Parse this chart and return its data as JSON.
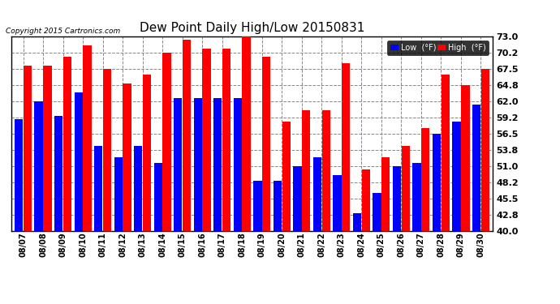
{
  "title": "Dew Point Daily High/Low 20150831",
  "copyright": "Copyright 2015 Cartronics.com",
  "dates": [
    "08/07",
    "08/08",
    "08/09",
    "08/10",
    "08/11",
    "08/12",
    "08/13",
    "08/14",
    "08/15",
    "08/16",
    "08/17",
    "08/18",
    "08/19",
    "08/20",
    "08/21",
    "08/22",
    "08/23",
    "08/24",
    "08/25",
    "08/26",
    "08/27",
    "08/28",
    "08/29",
    "08/30"
  ],
  "high": [
    68.0,
    68.0,
    69.5,
    71.5,
    67.5,
    65.0,
    66.5,
    70.2,
    72.5,
    71.0,
    71.0,
    73.0,
    69.5,
    58.5,
    60.5,
    60.5,
    68.5,
    50.5,
    52.5,
    54.5,
    57.5,
    66.5,
    64.8,
    67.5
  ],
  "low": [
    59.0,
    62.0,
    59.5,
    63.5,
    54.5,
    52.5,
    54.5,
    51.5,
    62.5,
    62.5,
    62.5,
    62.5,
    48.5,
    48.5,
    51.0,
    52.5,
    49.5,
    43.0,
    46.5,
    51.0,
    51.5,
    56.5,
    58.5,
    61.5
  ],
  "ylim_min": 40.0,
  "ylim_max": 73.0,
  "yticks": [
    40.0,
    42.8,
    45.5,
    48.2,
    51.0,
    53.8,
    56.5,
    59.2,
    62.0,
    64.8,
    67.5,
    70.2,
    73.0
  ],
  "high_color": "#ff0000",
  "low_color": "#0000ff",
  "bg_color": "#ffffff",
  "grid_color": "#888888",
  "title_fontsize": 11,
  "legend_low_label": "Low  (°F)",
  "legend_high_label": "High  (°F)"
}
